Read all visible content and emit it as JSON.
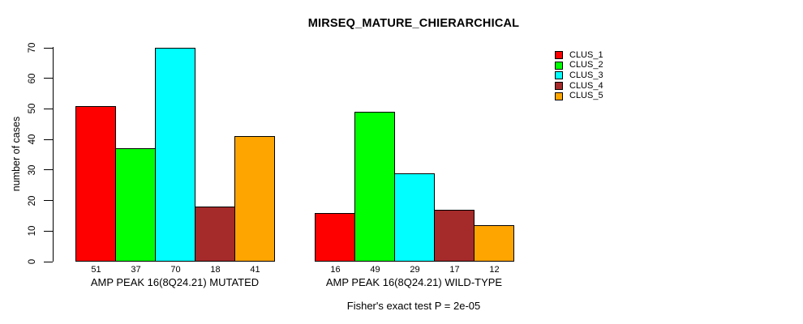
{
  "chart_data": {
    "type": "bar",
    "title": "MIRSEQ_MATURE_CHIERARCHICAL",
    "xlabel": "",
    "ylabel": "number of cases",
    "ylim": [
      0,
      70
    ],
    "yticks": [
      0,
      10,
      20,
      30,
      40,
      50,
      60,
      70
    ],
    "grid": false,
    "legend_position": "top-right",
    "bar_border_color": "#000000",
    "clusters": [
      {
        "name": "CLUS_1",
        "color": "#FF0000"
      },
      {
        "name": "CLUS_2",
        "color": "#00FF00"
      },
      {
        "name": "CLUS_3",
        "color": "#00FFFF"
      },
      {
        "name": "CLUS_4",
        "color": "#A52A2A"
      },
      {
        "name": "CLUS_5",
        "color": "#FFA500"
      }
    ],
    "groups": [
      {
        "label": "AMP PEAK 16(8Q24.21) MUTATED",
        "values": [
          51,
          37,
          70,
          18,
          41
        ]
      },
      {
        "label": "AMP PEAK 16(8Q24.21) WILD-TYPE",
        "values": [
          16,
          49,
          29,
          17,
          12
        ]
      }
    ],
    "annotation": "Fisher's exact test P = 2e-05"
  }
}
